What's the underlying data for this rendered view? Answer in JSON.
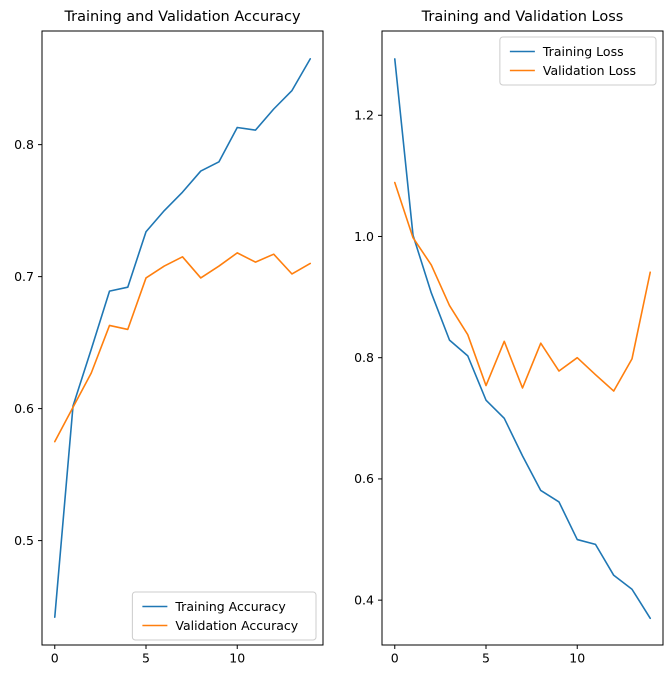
{
  "figure": {
    "background": "#ffffff",
    "text_color": "#000000",
    "spine_color": "#000000",
    "legend_border_color": "#cccccc",
    "accent_blue": "#1f77b4",
    "accent_orange": "#ff7f0e"
  },
  "chart_data": [
    {
      "type": "line",
      "title": "Training and Validation Accuracy",
      "xlabel": "",
      "ylabel": "",
      "x": [
        0,
        1,
        2,
        3,
        4,
        5,
        6,
        7,
        8,
        9,
        10,
        11,
        12,
        13,
        14
      ],
      "series": [
        {
          "name": "Training Accuracy",
          "color": "#1f77b4",
          "values": [
            0.442,
            0.602,
            0.645,
            0.689,
            0.692,
            0.734,
            0.75,
            0.764,
            0.78,
            0.787,
            0.813,
            0.811,
            0.827,
            0.841,
            0.865
          ]
        },
        {
          "name": "Validation Accuracy",
          "color": "#ff7f0e",
          "values": [
            0.575,
            0.601,
            0.627,
            0.663,
            0.66,
            0.699,
            0.708,
            0.715,
            0.699,
            0.708,
            0.718,
            0.711,
            0.717,
            0.702,
            0.71
          ]
        }
      ],
      "xlim": [
        -0.7,
        14.7
      ],
      "ylim": [
        0.4209,
        0.8861
      ],
      "xticks": [
        {
          "v": 0,
          "label": "0"
        },
        {
          "v": 5,
          "label": "5"
        },
        {
          "v": 10,
          "label": "10"
        }
      ],
      "yticks": [
        {
          "v": 0.5,
          "label": "0.5"
        },
        {
          "v": 0.6,
          "label": "0.6"
        },
        {
          "v": 0.7,
          "label": "0.7"
        },
        {
          "v": 0.8,
          "label": "0.8"
        }
      ],
      "grid": false,
      "legend_position": "lower right",
      "legend_entries": [
        "Training Accuracy",
        "Validation Accuracy"
      ]
    },
    {
      "type": "line",
      "title": "Training and Validation Loss",
      "xlabel": "",
      "ylabel": "",
      "x": [
        0,
        1,
        2,
        3,
        4,
        5,
        6,
        7,
        8,
        9,
        10,
        11,
        12,
        13,
        14
      ],
      "series": [
        {
          "name": "Training Loss",
          "color": "#1f77b4",
          "values": [
            1.293,
            1.002,
            0.907,
            0.829,
            0.803,
            0.73,
            0.7,
            0.638,
            0.581,
            0.562,
            0.5,
            0.492,
            0.441,
            0.418,
            0.37
          ]
        },
        {
          "name": "Validation Loss",
          "color": "#ff7f0e",
          "values": [
            1.089,
            0.998,
            0.953,
            0.886,
            0.838,
            0.754,
            0.827,
            0.75,
            0.824,
            0.778,
            0.8,
            0.772,
            0.745,
            0.798,
            0.941
          ]
        }
      ],
      "xlim": [
        -0.7,
        14.7
      ],
      "ylim": [
        0.326,
        1.339
      ],
      "xticks": [
        {
          "v": 0,
          "label": "0"
        },
        {
          "v": 5,
          "label": "5"
        },
        {
          "v": 10,
          "label": "10"
        }
      ],
      "yticks": [
        {
          "v": 0.4,
          "label": "0.4"
        },
        {
          "v": 0.6,
          "label": "0.6"
        },
        {
          "v": 0.8,
          "label": "0.8"
        },
        {
          "v": 1.0,
          "label": "1.0"
        },
        {
          "v": 1.2,
          "label": "1.2"
        }
      ],
      "grid": false,
      "legend_position": "upper right",
      "legend_entries": [
        "Training Loss",
        "Validation Loss"
      ]
    }
  ]
}
